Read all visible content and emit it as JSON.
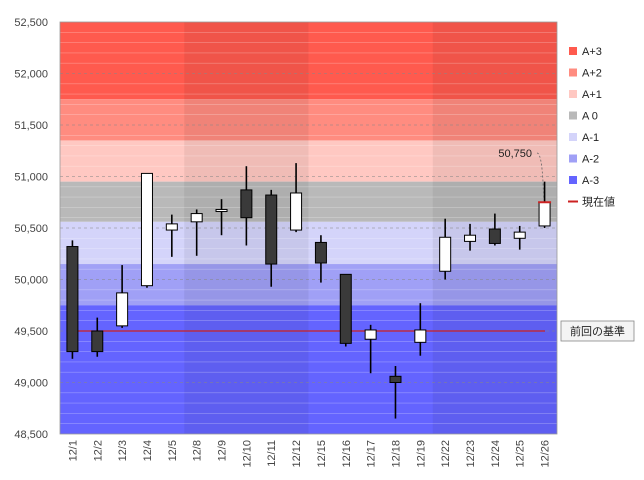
{
  "chart_data": {
    "type": "candlestick",
    "title": "",
    "xlabel": "",
    "ylabel": "",
    "ylim": [
      48500,
      52500
    ],
    "ytick_step": 500,
    "ytick_labels": [
      "48,500",
      "49,000",
      "49,500",
      "50,000",
      "50,500",
      "51,000",
      "51,500",
      "52,000",
      "52,500"
    ],
    "categories": [
      "12/1",
      "12/2",
      "12/3",
      "12/4",
      "12/5",
      "12/8",
      "12/9",
      "12/10",
      "12/11",
      "12/12",
      "12/15",
      "12/16",
      "12/17",
      "12/18",
      "12/19",
      "12/22",
      "12/23",
      "12/24",
      "12/25",
      "12/26"
    ],
    "candles": [
      {
        "open": 50320,
        "high": 50380,
        "low": 49230,
        "close": 49300
      },
      {
        "open": 49500,
        "high": 49630,
        "low": 49250,
        "close": 49300
      },
      {
        "open": 49550,
        "high": 50140,
        "low": 49530,
        "close": 49870
      },
      {
        "open": 49940,
        "high": 51030,
        "low": 49920,
        "close": 51030
      },
      {
        "open": 50480,
        "high": 50630,
        "low": 50220,
        "close": 50540
      },
      {
        "open": 50560,
        "high": 50680,
        "low": 50230,
        "close": 50640
      },
      {
        "open": 50660,
        "high": 50780,
        "low": 50430,
        "close": 50680
      },
      {
        "open": 50870,
        "high": 51100,
        "low": 50330,
        "close": 50600
      },
      {
        "open": 50820,
        "high": 50870,
        "low": 49930,
        "close": 50150
      },
      {
        "open": 50480,
        "high": 51130,
        "low": 50460,
        "close": 50840
      },
      {
        "open": 50360,
        "high": 50430,
        "low": 49970,
        "close": 50160
      },
      {
        "open": 50050,
        "high": 50050,
        "low": 49350,
        "close": 49380
      },
      {
        "open": 49420,
        "high": 49560,
        "low": 49090,
        "close": 49510
      },
      {
        "open": 49060,
        "high": 49160,
        "low": 48650,
        "close": 49000
      },
      {
        "open": 49390,
        "high": 49770,
        "low": 49260,
        "close": 49510
      },
      {
        "open": 50080,
        "high": 50590,
        "low": 50000,
        "close": 50410
      },
      {
        "open": 50370,
        "high": 50540,
        "low": 50280,
        "close": 50430
      },
      {
        "open": 50490,
        "high": 50640,
        "low": 50330,
        "close": 50350
      },
      {
        "open": 50400,
        "high": 50520,
        "low": 50290,
        "close": 50460
      },
      {
        "open": 50520,
        "high": 50950,
        "low": 50500,
        "close": 50750
      }
    ],
    "bands": [
      {
        "name": "A+3",
        "from": 51750,
        "to": 52500,
        "color": "#ff5a4e"
      },
      {
        "name": "A+2",
        "from": 51350,
        "to": 51750,
        "color": "#ff8c80"
      },
      {
        "name": "A+1",
        "from": 50950,
        "to": 51350,
        "color": "#ffc8c2"
      },
      {
        "name": "A 0",
        "from": 50560,
        "to": 50950,
        "color": "#b9b9b9"
      },
      {
        "name": "A-1",
        "from": 50150,
        "to": 50560,
        "color": "#d4d4fa"
      },
      {
        "name": "A-2",
        "from": 49750,
        "to": 50150,
        "color": "#a0a0f6"
      },
      {
        "name": "A-3",
        "from": 48500,
        "to": 49750,
        "color": "#6464ff"
      }
    ],
    "previous_baseline": {
      "label": "前回の基準",
      "value": 49500,
      "color": "#cc2222"
    },
    "current_value": {
      "label": "現在値",
      "value": 50750,
      "value_label": "50,750",
      "color": "#cc2222"
    },
    "legend": [
      "A+3",
      "A+2",
      "A+1",
      "A 0",
      "A-1",
      "A-2",
      "A-3",
      "現在値"
    ]
  }
}
